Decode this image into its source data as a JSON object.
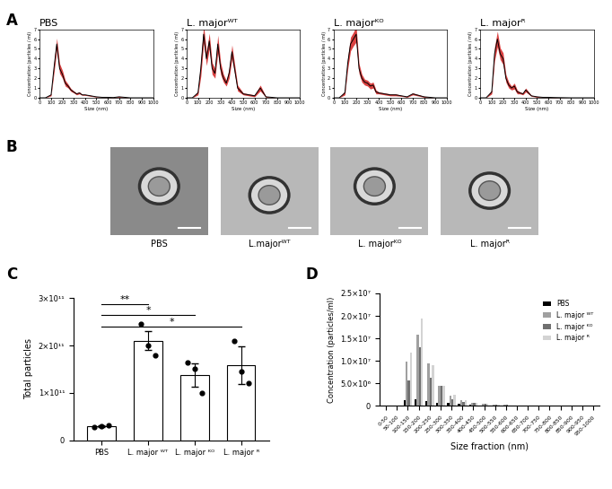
{
  "panels": [
    "A",
    "B",
    "C",
    "D"
  ],
  "images": {
    "titles": [
      "PBS",
      "L.majorᵂᵀ",
      "L. majorᴷᴼ",
      "L. majorᴿ"
    ]
  },
  "chart_data": [
    {
      "type": "line",
      "title": "PBS",
      "x_label": "Size (nm)",
      "y_label": "Concentration (particles / ml)",
      "x": [
        0,
        50,
        100,
        125,
        150,
        175,
        200,
        225,
        250,
        275,
        300,
        325,
        350,
        375,
        400,
        450,
        500,
        550,
        600,
        650,
        700,
        800,
        900,
        1000
      ],
      "xlim": [
        0,
        1000
      ],
      "xticks": [
        0,
        100,
        200,
        300,
        400,
        500,
        600,
        700,
        800,
        900,
        1000
      ],
      "ylim": [
        0,
        7
      ],
      "yticks": [
        0,
        1,
        2,
        3,
        4,
        5,
        6,
        7
      ],
      "series": [
        {
          "color": "#d42020",
          "values": [
            0,
            0,
            0.3,
            3.0,
            5.5,
            3.0,
            2.4,
            1.5,
            1.2,
            0.8,
            0.6,
            0.4,
            0.5,
            0.3,
            0.3,
            0.2,
            0.1,
            0.05,
            0.05,
            0.03,
            0.1,
            0,
            0,
            0
          ],
          "errors": [
            0,
            0,
            0.1,
            0.5,
            0.6,
            0.5,
            0.4,
            0.3,
            0.2,
            0.15,
            0.1,
            0.1,
            0.1,
            0.05,
            0.05,
            0.05,
            0.03,
            0.02,
            0.02,
            0.02,
            0.05,
            0,
            0,
            0
          ]
        }
      ]
    },
    {
      "type": "line",
      "title": "L. majorᵂᵀ",
      "x_label": "Size (nm)",
      "y_label": "Concentration (particles / ml)",
      "x": [
        0,
        50,
        100,
        125,
        150,
        175,
        200,
        225,
        250,
        275,
        300,
        325,
        350,
        375,
        400,
        450,
        500,
        550,
        600,
        650,
        700,
        800,
        900,
        1000
      ],
      "xlim": [
        0,
        1000
      ],
      "xticks": [
        0,
        100,
        200,
        300,
        400,
        500,
        600,
        700,
        800,
        900,
        1000
      ],
      "ylim": [
        0,
        7
      ],
      "yticks": [
        0,
        1,
        2,
        3,
        4,
        5,
        6,
        7
      ],
      "series": [
        {
          "color": "#d42020",
          "values": [
            0,
            0,
            0.5,
            3.0,
            6.5,
            4.0,
            5.8,
            3.0,
            2.5,
            5.5,
            3.0,
            2.0,
            1.5,
            2.5,
            4.7,
            1.0,
            0.4,
            0.3,
            0.2,
            1.0,
            0.1,
            0,
            0,
            0
          ],
          "errors": [
            0,
            0,
            0.2,
            0.8,
            0.9,
            0.7,
            0.8,
            0.6,
            0.5,
            0.9,
            0.6,
            0.4,
            0.3,
            0.5,
            0.7,
            0.3,
            0.1,
            0.1,
            0.1,
            0.3,
            0.05,
            0,
            0,
            0
          ]
        }
      ]
    },
    {
      "type": "line",
      "title": "L. majorᴷᴼ",
      "x_label": "Size (nm)",
      "y_label": "Concentration (particles / ml)",
      "x": [
        0,
        50,
        100,
        125,
        150,
        175,
        200,
        225,
        250,
        275,
        300,
        325,
        350,
        375,
        400,
        450,
        500,
        550,
        600,
        650,
        700,
        800,
        900,
        1000
      ],
      "xlim": [
        0,
        1000
      ],
      "xticks": [
        0,
        100,
        200,
        300,
        400,
        500,
        600,
        700,
        800,
        900,
        1000
      ],
      "ylim": [
        0,
        7
      ],
      "yticks": [
        0,
        1,
        2,
        3,
        4,
        5,
        6,
        7
      ],
      "series": [
        {
          "color": "#d42020",
          "values": [
            0,
            0,
            0.5,
            3.5,
            5.5,
            6.0,
            6.5,
            3.0,
            2.0,
            1.6,
            1.5,
            1.2,
            1.3,
            0.6,
            0.5,
            0.4,
            0.3,
            0.3,
            0.2,
            0.1,
            0.4,
            0.1,
            0,
            0
          ],
          "errors": [
            0,
            0,
            0.2,
            0.6,
            0.7,
            0.7,
            0.8,
            0.5,
            0.4,
            0.3,
            0.3,
            0.3,
            0.3,
            0.2,
            0.1,
            0.1,
            0.1,
            0.1,
            0.05,
            0.05,
            0.1,
            0.05,
            0,
            0
          ]
        }
      ]
    },
    {
      "type": "line",
      "title": "L. majorᴿ",
      "x_label": "Size (nm)",
      "y_label": "Concentration (particles / ml)",
      "x": [
        0,
        50,
        100,
        125,
        150,
        175,
        200,
        225,
        250,
        275,
        300,
        325,
        350,
        375,
        400,
        450,
        500,
        550,
        600,
        650,
        700,
        800,
        900,
        1000
      ],
      "xlim": [
        0,
        1000
      ],
      "xticks": [
        0,
        100,
        200,
        300,
        400,
        500,
        600,
        700,
        800,
        900,
        1000
      ],
      "ylim": [
        0,
        7
      ],
      "yticks": [
        0,
        1,
        2,
        3,
        4,
        5,
        6,
        7
      ],
      "series": [
        {
          "color": "#d42020",
          "values": [
            0,
            0,
            0.6,
            4.5,
            6.0,
            4.5,
            4.0,
            2.0,
            1.3,
            1.0,
            1.2,
            0.6,
            0.5,
            0.4,
            0.8,
            0.2,
            0.1,
            0.05,
            0.05,
            0.03,
            0.02,
            0,
            0,
            0
          ],
          "errors": [
            0,
            0,
            0.2,
            0.7,
            0.8,
            0.6,
            0.6,
            0.4,
            0.3,
            0.2,
            0.3,
            0.2,
            0.1,
            0.1,
            0.2,
            0.05,
            0.05,
            0.02,
            0.02,
            0.02,
            0.01,
            0,
            0,
            0
          ]
        }
      ]
    },
    {
      "type": "bar",
      "y_label": "Total particles",
      "categories": [
        "PBS",
        "L. major ᵂᵀ",
        "L. major ᴷᴼ",
        "L. major ᴿ"
      ],
      "values": [
        30000000000.0,
        210000000000.0,
        138000000000.0,
        158000000000.0
      ],
      "errors": [
        2000000000.0,
        20000000000.0,
        25000000000.0,
        40000000000.0
      ],
      "points": [
        [
          28000000000.0,
          30000000000.0,
          31000000000.0
        ],
        [
          245000000000.0,
          200000000000.0,
          180000000000.0
        ],
        [
          165000000000.0,
          150000000000.0,
          100000000000.0
        ],
        [
          210000000000.0,
          145000000000.0,
          120000000000.0
        ]
      ],
      "color": "#ffffff",
      "ylim": [
        0,
        300000000000.0
      ],
      "yticks": [
        0,
        {
          "value": 100000000000.0,
          "label": "1×10¹¹"
        },
        {
          "value": 200000000000.0,
          "label": "2×10¹¹"
        },
        {
          "value": 300000000000.0,
          "label": "3×10¹¹"
        }
      ],
      "annotations": [
        {
          "from": "PBS",
          "to": "L. major ᴿ",
          "text": "*"
        },
        {
          "from": "PBS",
          "to": "L. major ᴷᴼ",
          "text": "*"
        },
        {
          "from": "PBS",
          "to": "L. major ᵂᵀ",
          "text": "**"
        }
      ]
    },
    {
      "type": "bar",
      "x_label": "Size fraction (nm)",
      "y_label": "Concentration (particles/ml)",
      "categories": [
        "0-50",
        "50-100",
        "100-150",
        "150-200",
        "200-250",
        "250-300",
        "300-350",
        "350-400",
        "400-450",
        "450-500",
        "500-550",
        "550-600",
        "600-650",
        "650-700",
        "700-750",
        "750-800",
        "800-850",
        "850-900",
        "900-950",
        "950-1000"
      ],
      "series": [
        {
          "name": "PBS",
          "color": "#000000",
          "values": [
            0,
            0,
            1300000,
            1500000,
            1000000,
            700000,
            600000,
            400000,
            200000,
            100000,
            50000,
            0,
            0,
            0,
            0,
            0,
            0,
            0,
            0,
            0
          ]
        },
        {
          "name": "L. major ᵂᵀ",
          "color": "#a0a0a0",
          "values": [
            0,
            0,
            9800000,
            15800000,
            9500000,
            4500000,
            2200000,
            1200000,
            700000,
            500000,
            300000,
            200000,
            100000,
            0,
            0,
            0,
            0,
            0,
            0,
            0
          ]
        },
        {
          "name": "L. major ᴷᴼ",
          "color": "#707070",
          "values": [
            0,
            0,
            5700000,
            13000000,
            6300000,
            4500000,
            1500000,
            900000,
            600000,
            400000,
            300000,
            200000,
            100000,
            0,
            0,
            0,
            0,
            0,
            0,
            0
          ]
        },
        {
          "name": "L. major ᴿ",
          "color": "#d3d3d3",
          "values": [
            0,
            0,
            11800000,
            19500000,
            9000000,
            4500000,
            2500000,
            1300000,
            600000,
            400000,
            200000,
            100000,
            50000,
            0,
            0,
            0,
            0,
            0,
            0,
            0
          ]
        }
      ],
      "ylim": [
        0,
        25000000
      ],
      "yticks": [
        0,
        {
          "value": 5000000,
          "label": "5.0×10⁶"
        },
        {
          "value": 10000000,
          "label": "1.0×10⁷"
        },
        {
          "value": 15000000,
          "label": "1.5×10⁷"
        },
        {
          "value": 20000000,
          "label": "2.0×10⁷"
        },
        {
          "value": 25000000,
          "label": "2.5×10⁷"
        }
      ],
      "legend": "upper right"
    }
  ]
}
